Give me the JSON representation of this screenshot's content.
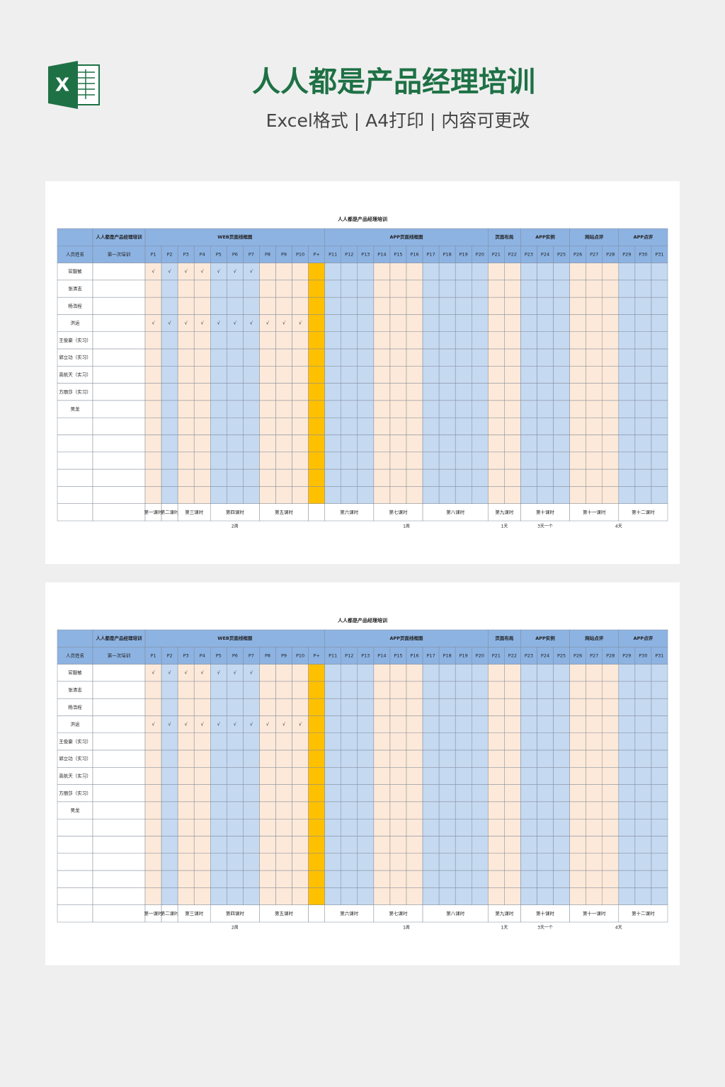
{
  "header": {
    "title": "人人都是产品经理培训",
    "subtitle": "Excel格式 | A4打印 | 内容可更改"
  },
  "sheets": [
    {
      "title": "人人都是产品经理培训",
      "corner": "人人都是产品经理培训",
      "name_header": "人员姓名",
      "session_header": "第一次培训",
      "groups": [
        {
          "label": "WEB页面线框图",
          "span": 11
        },
        {
          "label": "APP页面线框图",
          "span": 10
        },
        {
          "label": "页面布局",
          "span": 2
        },
        {
          "label": "APP实例",
          "span": 3
        },
        {
          "label": "网站点评",
          "span": 3
        },
        {
          "label": "APP点评",
          "span": 3
        }
      ],
      "columns": [
        "P1",
        "P2",
        "P3",
        "P4",
        "P5",
        "P6",
        "P7",
        "P8",
        "P9",
        "P10",
        "P+",
        "P11",
        "P12",
        "P13",
        "P14",
        "P15",
        "P16",
        "P17",
        "P18",
        "P19",
        "P20",
        "P21",
        "P22",
        "P23",
        "P24",
        "P25",
        "P26",
        "P27",
        "P28",
        "P29",
        "P30",
        "P31"
      ],
      "column_fills": [
        "#fde9d9",
        "#c5d9f1",
        "#fde9d9",
        "#fde9d9",
        "#c5d9f1",
        "#c5d9f1",
        "#c5d9f1",
        "#fde9d9",
        "#fde9d9",
        "#fde9d9",
        "#ffc000",
        "#c5d9f1",
        "#c5d9f1",
        "#c5d9f1",
        "#fde9d9",
        "#fde9d9",
        "#fde9d9",
        "#c5d9f1",
        "#c5d9f1",
        "#c5d9f1",
        "#c5d9f1",
        "#fde9d9",
        "#fde9d9",
        "#c5d9f1",
        "#c5d9f1",
        "#c5d9f1",
        "#fde9d9",
        "#fde9d9",
        "#fde9d9",
        "#c5d9f1",
        "#c5d9f1",
        "#c5d9f1"
      ],
      "rows": [
        {
          "name": "官靓敏",
          "checks": [
            "√",
            "√",
            "√",
            "√",
            "√",
            "√",
            "√"
          ]
        },
        {
          "name": "张清志",
          "checks": []
        },
        {
          "name": "杨浩程",
          "checks": []
        },
        {
          "name": "洪运",
          "checks": [
            "√",
            "√",
            "√",
            "√",
            "√",
            "√",
            "√",
            "√",
            "√",
            "√"
          ]
        },
        {
          "name": "王俊豪（实习）",
          "checks": []
        },
        {
          "name": "郭立功（实习）",
          "checks": []
        },
        {
          "name": "高航天（实习）",
          "checks": []
        },
        {
          "name": "方丽莎（实习）",
          "checks": []
        },
        {
          "name": "吴龙",
          "checks": []
        },
        {
          "name": null,
          "checks": []
        },
        {
          "name": null,
          "checks": []
        },
        {
          "name": null,
          "checks": []
        },
        {
          "name": null,
          "checks": []
        },
        {
          "name": null,
          "checks": []
        }
      ],
      "lessons": [
        {
          "label": "第一课时",
          "span": 1
        },
        {
          "label": "第二课时",
          "span": 1
        },
        {
          "label": "第三课时",
          "span": 2
        },
        {
          "label": "第四课时",
          "span": 3
        },
        {
          "label": "第五课时",
          "span": 3
        },
        {
          "label": null,
          "span": 1
        },
        {
          "label": "第六课时",
          "span": 3
        },
        {
          "label": "第七课时",
          "span": 3
        },
        {
          "label": "第八课时",
          "span": 4
        },
        {
          "label": "第九课时",
          "span": 2
        },
        {
          "label": "第十课时",
          "span": 3
        },
        {
          "label": "第十一课时",
          "span": 3
        },
        {
          "label": "第十二课时",
          "span": 3
        }
      ],
      "durations": [
        {
          "label": "2周",
          "span": 11
        },
        {
          "label": "1周",
          "span": 10
        },
        {
          "label": "1天",
          "span": 2
        },
        {
          "label": "3天一个",
          "span": 3
        },
        {
          "label": "4天",
          "span": 6
        }
      ]
    },
    {
      "title": "人人都是产品经理培训",
      "corner": "人人都是产品经理培训",
      "name_header": "人员姓名",
      "session_header": "第一次培训",
      "groups": [
        {
          "label": "WEB页面线框图",
          "span": 11
        },
        {
          "label": "APP页面线框图",
          "span": 10
        },
        {
          "label": "页面布局",
          "span": 2
        },
        {
          "label": "APP实例",
          "span": 3
        },
        {
          "label": "网站点评",
          "span": 3
        },
        {
          "label": "APP点评",
          "span": 3
        }
      ],
      "columns": [
        "P1",
        "P2",
        "P3",
        "P4",
        "P5",
        "P6",
        "P7",
        "P8",
        "P9",
        "P10",
        "P+",
        "P11",
        "P12",
        "P13",
        "P14",
        "P15",
        "P16",
        "P17",
        "P18",
        "P19",
        "P20",
        "P21",
        "P22",
        "P23",
        "P24",
        "P25",
        "P26",
        "P27",
        "P28",
        "P29",
        "P30",
        "P31"
      ],
      "column_fills": [
        "#fde9d9",
        "#c5d9f1",
        "#fde9d9",
        "#fde9d9",
        "#c5d9f1",
        "#c5d9f1",
        "#c5d9f1",
        "#fde9d9",
        "#fde9d9",
        "#fde9d9",
        "#ffc000",
        "#c5d9f1",
        "#c5d9f1",
        "#c5d9f1",
        "#fde9d9",
        "#fde9d9",
        "#fde9d9",
        "#c5d9f1",
        "#c5d9f1",
        "#c5d9f1",
        "#c5d9f1",
        "#fde9d9",
        "#fde9d9",
        "#c5d9f1",
        "#c5d9f1",
        "#c5d9f1",
        "#fde9d9",
        "#fde9d9",
        "#fde9d9",
        "#c5d9f1",
        "#c5d9f1",
        "#c5d9f1"
      ],
      "rows": [
        {
          "name": "官靓敏",
          "checks": [
            "√",
            "√",
            "√",
            "√",
            "√",
            "√",
            "√"
          ]
        },
        {
          "name": "张清志",
          "checks": []
        },
        {
          "name": "杨浩程",
          "checks": []
        },
        {
          "name": "洪运",
          "checks": [
            "√",
            "√",
            "√",
            "√",
            "√",
            "√",
            "√",
            "√",
            "√",
            "√"
          ]
        },
        {
          "name": "王俊豪（实习）",
          "checks": []
        },
        {
          "name": "郭立功（实习）",
          "checks": []
        },
        {
          "name": "高航天（实习）",
          "checks": []
        },
        {
          "name": "方丽莎（实习）",
          "checks": []
        },
        {
          "name": "吴龙",
          "checks": []
        },
        {
          "name": null,
          "checks": []
        },
        {
          "name": null,
          "checks": []
        },
        {
          "name": null,
          "checks": []
        },
        {
          "name": null,
          "checks": []
        },
        {
          "name": null,
          "checks": []
        }
      ],
      "lessons": [
        {
          "label": "第一课时",
          "span": 1
        },
        {
          "label": "第二课时",
          "span": 1
        },
        {
          "label": "第三课时",
          "span": 2
        },
        {
          "label": "第四课时",
          "span": 3
        },
        {
          "label": "第五课时",
          "span": 3
        },
        {
          "label": null,
          "span": 1
        },
        {
          "label": "第六课时",
          "span": 3
        },
        {
          "label": "第七课时",
          "span": 3
        },
        {
          "label": "第八课时",
          "span": 4
        },
        {
          "label": "第九课时",
          "span": 2
        },
        {
          "label": "第十课时",
          "span": 3
        },
        {
          "label": "第十一课时",
          "span": 3
        },
        {
          "label": "第十二课时",
          "span": 3
        }
      ],
      "durations": [
        {
          "label": "2周",
          "span": 11
        },
        {
          "label": "1周",
          "span": 10
        },
        {
          "label": "1天",
          "span": 2
        },
        {
          "label": "3天一个",
          "span": 3
        },
        {
          "label": "4天",
          "span": 6
        }
      ]
    }
  ]
}
